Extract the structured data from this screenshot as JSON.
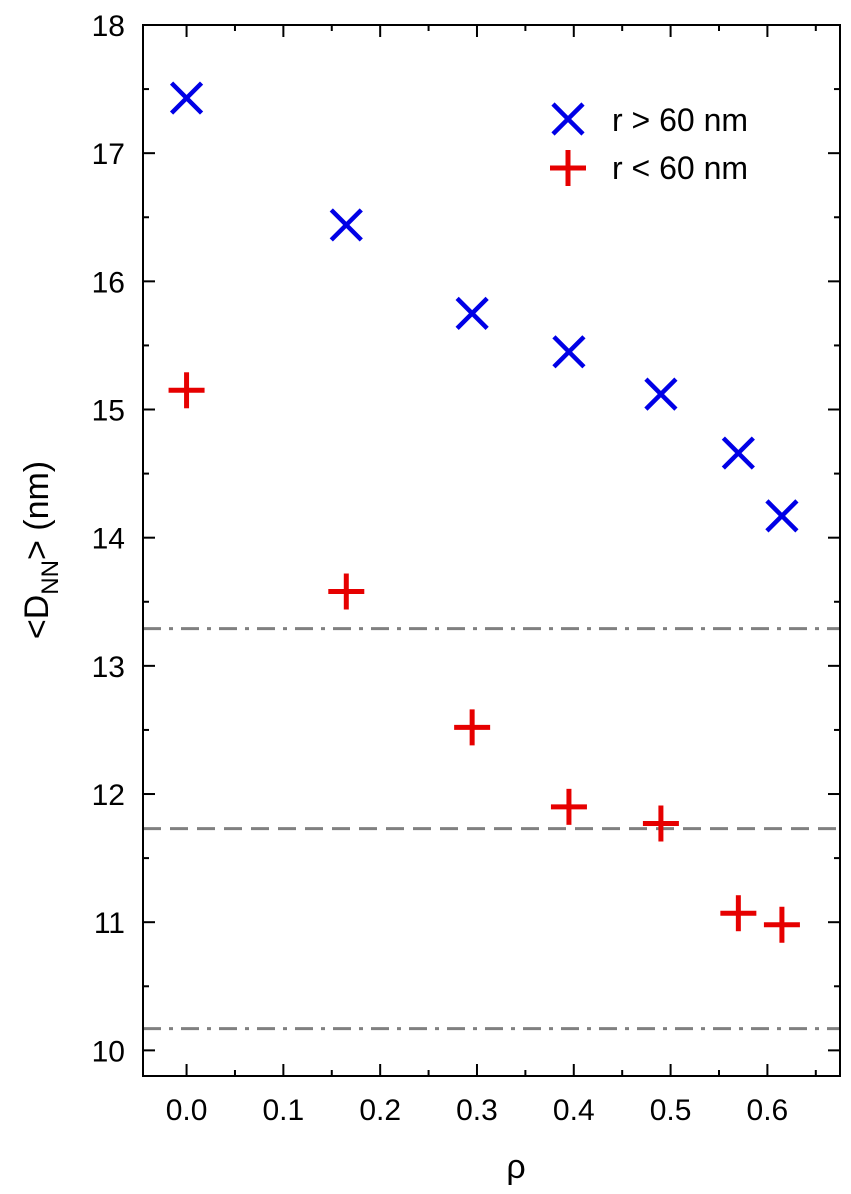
{
  "chart_data": {
    "type": "scatter",
    "xlabel": "ρ",
    "ylabel": {
      "prefix": "<D",
      "subscript": "NN",
      "suffix": "> (nm)"
    },
    "xlim": [
      -0.045,
      0.675
    ],
    "ylim": [
      9.8,
      18
    ],
    "xticks": [
      0.0,
      0.1,
      0.2,
      0.3,
      0.4,
      0.5,
      0.6
    ],
    "xtick_labels": [
      "0.0",
      "0.1",
      "0.2",
      "0.3",
      "0.4",
      "0.5",
      "0.6"
    ],
    "yticks": [
      10,
      11,
      12,
      13,
      14,
      15,
      16,
      17,
      18
    ],
    "ytick_labels": [
      "10",
      "11",
      "12",
      "13",
      "14",
      "15",
      "16",
      "17",
      "18"
    ],
    "grid": false,
    "legend_position": "top-right",
    "series": [
      {
        "name": "r > 60 nm",
        "marker": "x",
        "color": "#0000e6",
        "x": [
          0.0,
          0.165,
          0.295,
          0.395,
          0.49,
          0.57,
          0.615
        ],
        "y": [
          17.43,
          16.44,
          15.75,
          15.45,
          15.12,
          14.66,
          14.17
        ]
      },
      {
        "name": "r < 60 nm",
        "marker": "+",
        "color": "#e60000",
        "x": [
          0.0,
          0.165,
          0.295,
          0.395,
          0.49,
          0.57,
          0.615
        ],
        "y": [
          15.15,
          13.58,
          12.52,
          11.9,
          11.77,
          11.07,
          10.98
        ]
      }
    ],
    "reference_lines": [
      {
        "y": 13.29,
        "style": "dash-dot",
        "color": "#808080"
      },
      {
        "y": 11.73,
        "style": "dash",
        "color": "#808080"
      },
      {
        "y": 10.17,
        "style": "dash-dot",
        "color": "#808080"
      }
    ]
  }
}
